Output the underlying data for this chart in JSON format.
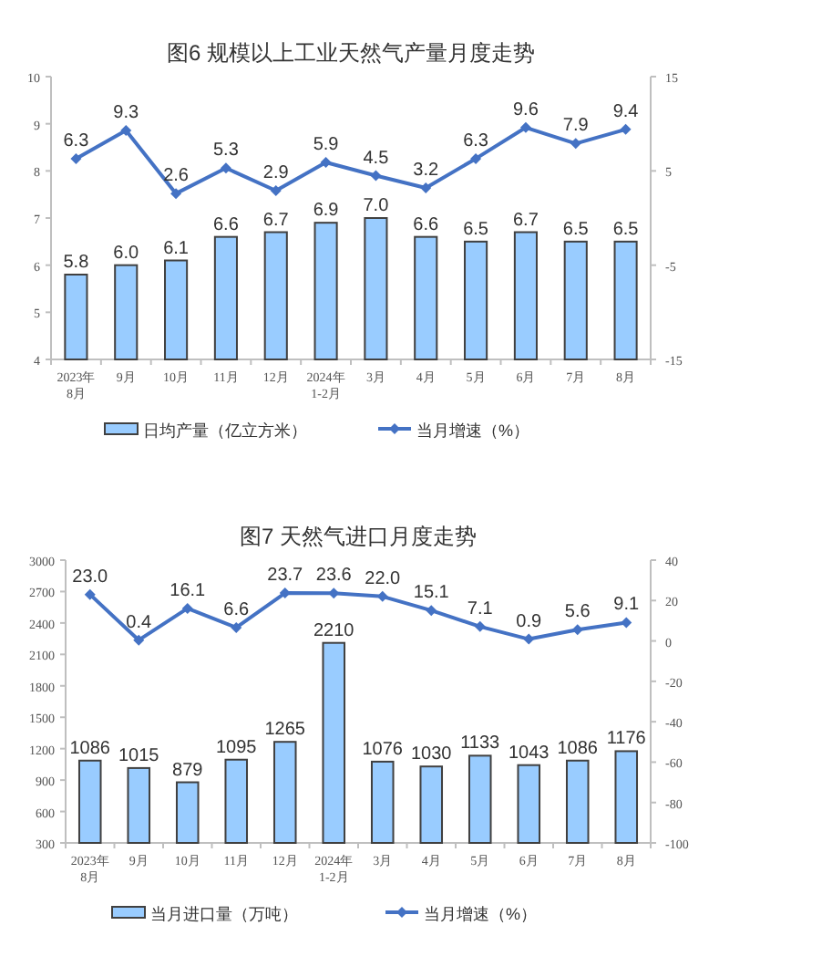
{
  "chart_data": [
    {
      "type": "bar",
      "title": "图6  规模以上工业天然气产量月度走势",
      "categories": [
        "2023年\n8月",
        "9月",
        "10月",
        "11月",
        "12月",
        "2024年\n1-2月",
        "3月",
        "4月",
        "5月",
        "6月",
        "7月",
        "8月"
      ],
      "series": [
        {
          "name": "日均产量（亿立方米）",
          "color": "#99ccff",
          "values": [
            5.8,
            6.0,
            6.1,
            6.6,
            6.7,
            6.9,
            7.0,
            6.6,
            6.5,
            6.7,
            6.5,
            6.5
          ],
          "value_labels": [
            "5.8",
            "6.0",
            "6.1",
            "6.6",
            "6.7",
            "6.9",
            "7.0",
            "6.6",
            "6.5",
            "6.7",
            "6.5",
            "6.5"
          ]
        },
        {
          "name": "当月增速（%）",
          "type": "line",
          "axis": "y2",
          "color": "#4472c4",
          "marker": "diamond",
          "values": [
            6.3,
            9.3,
            2.6,
            5.3,
            2.9,
            5.9,
            4.5,
            3.2,
            6.3,
            9.6,
            7.9,
            9.4
          ],
          "value_labels": [
            "6.3",
            "9.3",
            "2.6",
            "5.3",
            "2.9",
            "5.9",
            "4.5",
            "3.2",
            "6.3",
            "9.6",
            "7.9",
            "9.4"
          ]
        }
      ],
      "ylim": [
        4,
        10
      ],
      "yticks": [
        4,
        5,
        6,
        7,
        8,
        9,
        10
      ],
      "y2lim": [
        -15,
        15
      ],
      "y2ticks": [
        -15,
        -5,
        5,
        15
      ],
      "grid": false,
      "legend": "bottom"
    },
    {
      "type": "bar",
      "title": "图7  天然气进口月度走势",
      "categories": [
        "2023年\n8月",
        "9月",
        "10月",
        "11月",
        "12月",
        "2024年\n1-2月",
        "3月",
        "4月",
        "5月",
        "6月",
        "7月",
        "8月"
      ],
      "series": [
        {
          "name": "当月进口量（万吨）",
          "color": "#99ccff",
          "values": [
            1086,
            1015,
            879,
            1095,
            1265,
            2210,
            1076,
            1030,
            1133,
            1043,
            1086,
            1176
          ],
          "value_labels": [
            "1086",
            "1015",
            "879",
            "1095",
            "1265",
            "2210",
            "1076",
            "1030",
            "1133",
            "1043",
            "1086",
            "1176"
          ]
        },
        {
          "name": "当月增速（%）",
          "type": "line",
          "axis": "y2",
          "color": "#4472c4",
          "marker": "diamond",
          "values": [
            23.0,
            0.4,
            16.1,
            6.6,
            23.7,
            23.6,
            22.0,
            15.1,
            7.1,
            0.9,
            5.6,
            9.1
          ],
          "value_labels": [
            "23.0",
            "0.4",
            "16.1",
            "6.6",
            "23.7",
            "23.6",
            "22.0",
            "15.1",
            "7.1",
            "0.9",
            "5.6",
            "9.1"
          ]
        }
      ],
      "ylim": [
        300,
        3000
      ],
      "yticks": [
        300,
        600,
        900,
        1200,
        1500,
        1800,
        2100,
        2400,
        2700,
        3000
      ],
      "y2lim": [
        -100,
        40
      ],
      "y2ticks": [
        -100,
        -80,
        -60,
        -40,
        -20,
        0,
        20,
        40
      ],
      "grid": false,
      "legend": "bottom"
    }
  ]
}
